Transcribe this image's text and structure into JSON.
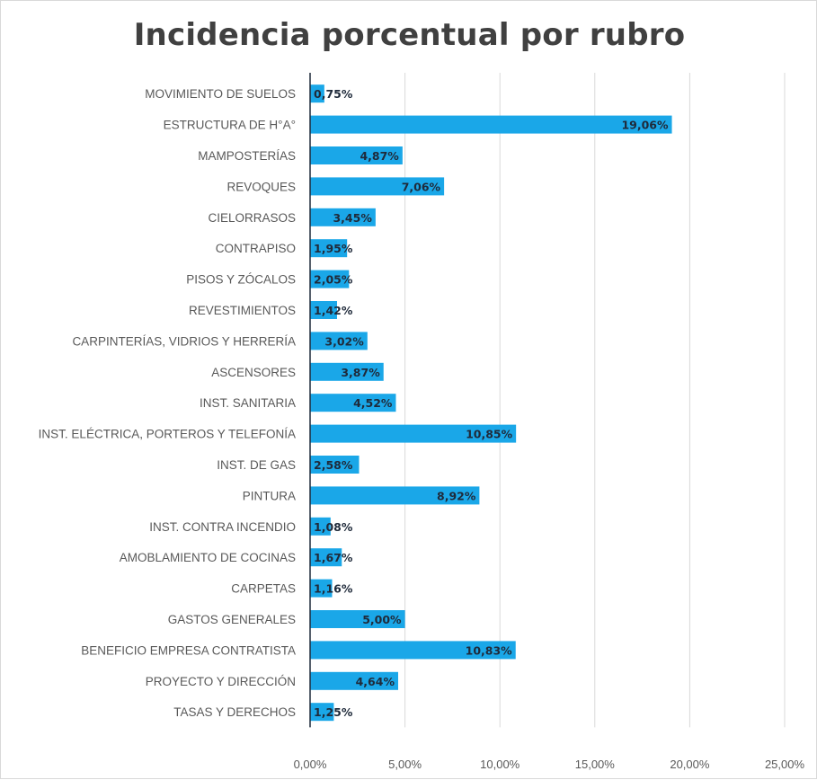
{
  "chart_data": {
    "type": "bar",
    "orientation": "horizontal",
    "title": "Incidencia porcentual por rubro",
    "categories": [
      "MOVIMIENTO DE SUELOS",
      "ESTRUCTURA DE H°A°",
      "MAMPOSTERÍAS",
      "REVOQUES",
      "CIELORRASOS",
      "CONTRAPISO",
      "PISOS Y ZÓCALOS",
      "REVESTIMIENTOS",
      "CARPINTERÍAS, VIDRIOS Y HERRERÍA",
      "ASCENSORES",
      "INST. SANITARIA",
      "INST. ELÉCTRICA, PORTEROS Y TELEFONÍA",
      "INST. DE GAS",
      "PINTURA",
      "INST. CONTRA INCENDIO",
      "AMOBLAMIENTO DE COCINAS",
      "CARPETAS",
      "GASTOS GENERALES",
      "BENEFICIO EMPRESA CONTRATISTA",
      "PROYECTO Y DIRECCIÓN",
      "TASAS Y DERECHOS"
    ],
    "values": [
      0.75,
      19.06,
      4.87,
      7.06,
      3.45,
      1.95,
      2.05,
      1.42,
      3.02,
      3.87,
      4.52,
      10.85,
      2.58,
      8.92,
      1.08,
      1.67,
      1.16,
      5.0,
      10.83,
      4.64,
      1.25
    ],
    "value_labels": [
      "0,75%",
      "19,06%",
      "4,87%",
      "7,06%",
      "3,45%",
      "1,95%",
      "2,05%",
      "1,42%",
      "3,02%",
      "3,87%",
      "4,52%",
      "10,85%",
      "2,58%",
      "8,92%",
      "1,08%",
      "1,67%",
      "1,16%",
      "5,00%",
      "10,83%",
      "4,64%",
      "1,25%"
    ],
    "x_ticks": [
      0,
      5,
      10,
      15,
      20,
      25
    ],
    "x_tick_labels": [
      "0,00%",
      "5,00%",
      "10,00%",
      "15,00%",
      "20,00%",
      "25,00%"
    ],
    "xlim": [
      0,
      25
    ],
    "xlabel": "",
    "ylabel": "",
    "grid": "vertical",
    "legend": "none",
    "bar_color": "#1aa7e8",
    "grid_color": "#d9d9d9",
    "axis_color": "#1f2a3a",
    "data_label_position": "inside-end"
  }
}
